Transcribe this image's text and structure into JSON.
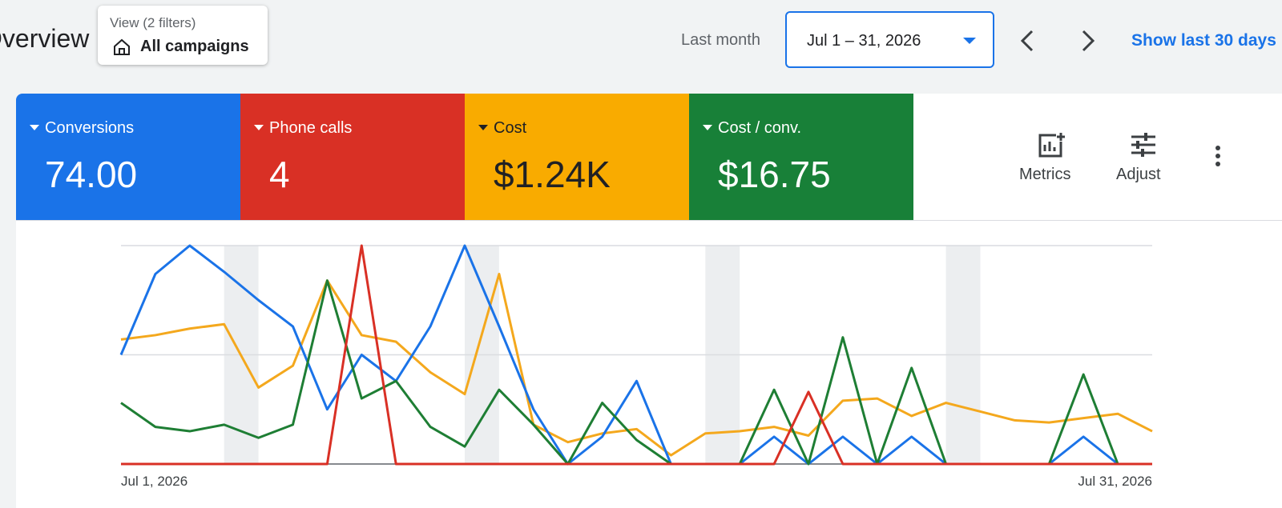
{
  "header": {
    "title": "Overview",
    "filter_caption": "View (2 filters)",
    "filter_value": "All campaigns",
    "range_label": "Last month",
    "date_range": "Jul 1 – 31, 2026",
    "show_last": "Show last 30 days"
  },
  "tools": {
    "metrics": "Metrics",
    "adjust": "Adjust"
  },
  "chart_data": {
    "type": "line",
    "categories": [
      "Jul 1, 2026",
      null,
      null,
      null,
      null,
      null,
      null,
      null,
      null,
      null,
      null,
      null,
      null,
      null,
      null,
      null,
      null,
      null,
      null,
      null,
      null,
      null,
      null,
      null,
      null,
      null,
      null,
      null,
      null,
      null,
      "Jul 31, 2026"
    ],
    "ylim": [
      0,
      100
    ],
    "yticks": [
      0,
      50,
      100
    ],
    "grid": true,
    "series": [
      {
        "name": "Conversions",
        "total": "74.00",
        "color": "#1a73e8",
        "values": [
          50,
          87,
          100,
          88,
          75,
          63,
          25,
          50,
          38,
          63,
          100,
          63,
          25,
          0,
          12.5,
          38,
          0,
          0,
          0,
          12.5,
          0,
          12.5,
          0,
          12.5,
          0,
          0,
          0,
          0,
          12.5,
          0,
          0
        ]
      },
      {
        "name": "Phone calls",
        "total": "4",
        "color": "#d93025",
        "values": [
          0,
          0,
          0,
          0,
          0,
          0,
          0,
          100,
          0,
          0,
          0,
          0,
          0,
          0,
          0,
          0,
          0,
          0,
          0,
          0,
          33,
          0,
          0,
          0,
          0,
          0,
          0,
          0,
          0,
          0,
          0
        ]
      },
      {
        "name": "Cost",
        "total": "$1.24K",
        "color": "#f4a81d",
        "values": [
          57,
          59,
          62,
          64,
          35,
          45,
          84,
          59,
          56,
          42,
          32,
          87,
          18,
          10,
          14,
          16,
          4,
          14,
          15,
          17,
          13,
          29,
          30,
          22,
          28,
          24,
          20,
          19,
          21,
          23,
          15
        ]
      },
      {
        "name": "Cost / conv.",
        "total": "$16.75",
        "color": "#1e7e34",
        "values": [
          28,
          17,
          15,
          18,
          12,
          18,
          84,
          30,
          38,
          17,
          8,
          34,
          18,
          0,
          28,
          11,
          0,
          0,
          0,
          34,
          0,
          58,
          0,
          44,
          0,
          0,
          0,
          0,
          41,
          0,
          0
        ]
      }
    ]
  }
}
